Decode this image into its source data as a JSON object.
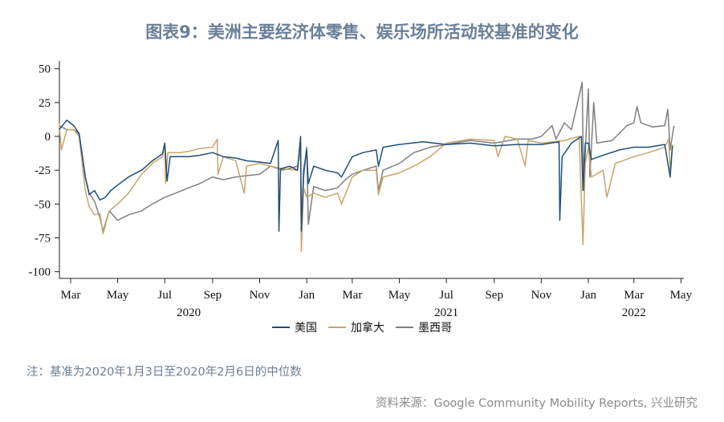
{
  "title": "图表9：美洲主要经济体零售、娱乐场所活动较基准的变化",
  "note": "注：基准为2020年1月3日至2020年2月6日的中位数",
  "source": "资料来源：Google Community Mobility Reports, 兴业研究",
  "chart_data": {
    "type": "line",
    "title": "图表9：美洲主要经济体零售、娱乐场所活动较基准的变化",
    "xlabel": "",
    "ylabel": "",
    "ylim": [
      -100,
      50
    ],
    "yticks": [
      "50",
      "25",
      "0",
      "-25",
      "-50",
      "-75",
      "-100"
    ],
    "xlim": [
      "2020-02-15",
      "2022-04-25"
    ],
    "xticks": [
      {
        "date": "2020-03-01",
        "label": "Mar"
      },
      {
        "date": "2020-05-01",
        "label": "May"
      },
      {
        "date": "2020-07-01",
        "label": "Jul"
      },
      {
        "date": "2020-09-01",
        "label": "Sep"
      },
      {
        "date": "2020-11-01",
        "label": "Nov"
      },
      {
        "date": "2021-01-01",
        "label": "Jan"
      },
      {
        "date": "2021-03-01",
        "label": "Mar"
      },
      {
        "date": "2021-05-01",
        "label": "May"
      },
      {
        "date": "2021-07-01",
        "label": "Jul"
      },
      {
        "date": "2021-09-01",
        "label": "Sep"
      },
      {
        "date": "2021-11-01",
        "label": "Nov"
      },
      {
        "date": "2022-01-01",
        "label": "Jan"
      },
      {
        "date": "2022-03-01",
        "label": "Mar"
      },
      {
        "date": "2022-05-01",
        "label": "May"
      }
    ],
    "year_labels": [
      {
        "date": "2020-08-01",
        "label": "2020"
      },
      {
        "date": "2021-07-01",
        "label": "2021"
      },
      {
        "date": "2022-03-01",
        "label": "2022"
      }
    ],
    "grid": false,
    "legend": "bottom",
    "series": [
      {
        "name": "美国",
        "color": "#1f4e79",
        "points": [
          [
            "2020-02-15",
            5
          ],
          [
            "2020-02-25",
            12
          ],
          [
            "2020-03-05",
            8
          ],
          [
            "2020-03-12",
            2
          ],
          [
            "2020-03-20",
            -30
          ],
          [
            "2020-03-25",
            -43
          ],
          [
            "2020-04-01",
            -40
          ],
          [
            "2020-04-08",
            -47
          ],
          [
            "2020-04-15",
            -45
          ],
          [
            "2020-04-22",
            -40
          ],
          [
            "2020-05-01",
            -36
          ],
          [
            "2020-05-15",
            -30
          ],
          [
            "2020-06-01",
            -25
          ],
          [
            "2020-06-15",
            -18
          ],
          [
            "2020-06-28",
            -13
          ],
          [
            "2020-07-01",
            -5
          ],
          [
            "2020-07-04",
            -33
          ],
          [
            "2020-07-08",
            -15
          ],
          [
            "2020-07-20",
            -15
          ],
          [
            "2020-08-01",
            -15
          ],
          [
            "2020-08-15",
            -14
          ],
          [
            "2020-09-01",
            -12
          ],
          [
            "2020-09-15",
            -15
          ],
          [
            "2020-10-01",
            -16
          ],
          [
            "2020-10-15",
            -18
          ],
          [
            "2020-11-01",
            -19
          ],
          [
            "2020-11-15",
            -20
          ],
          [
            "2020-11-25",
            -3
          ],
          [
            "2020-11-26",
            -70
          ],
          [
            "2020-11-28",
            -24
          ],
          [
            "2020-12-10",
            -22
          ],
          [
            "2020-12-20",
            -25
          ],
          [
            "2020-12-24",
            0
          ],
          [
            "2020-12-25",
            -70
          ],
          [
            "2020-12-28",
            -25
          ],
          [
            "2021-01-01",
            -10
          ],
          [
            "2021-01-03",
            -35
          ],
          [
            "2021-01-10",
            -22
          ],
          [
            "2021-01-25",
            -25
          ],
          [
            "2021-02-10",
            -27
          ],
          [
            "2021-02-15",
            -30
          ],
          [
            "2021-03-01",
            -15
          ],
          [
            "2021-03-15",
            -12
          ],
          [
            "2021-04-01",
            -10
          ],
          [
            "2021-04-04",
            -22
          ],
          [
            "2021-04-10",
            -8
          ],
          [
            "2021-05-01",
            -6
          ],
          [
            "2021-06-01",
            -4
          ],
          [
            "2021-07-01",
            -6
          ],
          [
            "2021-08-01",
            -5
          ],
          [
            "2021-09-01",
            -7
          ],
          [
            "2021-10-01",
            -6
          ],
          [
            "2021-11-01",
            -6
          ],
          [
            "2021-11-24",
            -4
          ],
          [
            "2021-11-25",
            -62
          ],
          [
            "2021-11-28",
            -15
          ],
          [
            "2021-12-10",
            -5
          ],
          [
            "2021-12-23",
            0
          ],
          [
            "2021-12-25",
            -40
          ],
          [
            "2021-12-28",
            -5
          ],
          [
            "2022-01-01",
            -5
          ],
          [
            "2022-01-05",
            -17
          ],
          [
            "2022-01-20",
            -14
          ],
          [
            "2022-02-10",
            -10
          ],
          [
            "2022-03-01",
            -8
          ],
          [
            "2022-03-20",
            -8
          ],
          [
            "2022-04-10",
            -6
          ],
          [
            "2022-04-17",
            -30
          ],
          [
            "2022-04-20",
            -7
          ]
        ]
      },
      {
        "name": "加拿大",
        "color": "#c9a46b",
        "points": [
          [
            "2020-02-15",
            10
          ],
          [
            "2020-02-18",
            -10
          ],
          [
            "2020-02-25",
            5
          ],
          [
            "2020-03-05",
            5
          ],
          [
            "2020-03-12",
            0
          ],
          [
            "2020-03-20",
            -40
          ],
          [
            "2020-03-25",
            -52
          ],
          [
            "2020-04-01",
            -58
          ],
          [
            "2020-04-08",
            -57
          ],
          [
            "2020-04-12",
            -72
          ],
          [
            "2020-04-20",
            -55
          ],
          [
            "2020-05-01",
            -50
          ],
          [
            "2020-05-15",
            -42
          ],
          [
            "2020-06-01",
            -28
          ],
          [
            "2020-06-15",
            -20
          ],
          [
            "2020-06-28",
            -15
          ],
          [
            "2020-07-01",
            -5
          ],
          [
            "2020-07-02",
            -35
          ],
          [
            "2020-07-05",
            -12
          ],
          [
            "2020-07-20",
            -12
          ],
          [
            "2020-08-01",
            -11
          ],
          [
            "2020-08-15",
            -9
          ],
          [
            "2020-09-01",
            -8
          ],
          [
            "2020-09-07",
            -2
          ],
          [
            "2020-09-08",
            -28
          ],
          [
            "2020-09-15",
            -15
          ],
          [
            "2020-10-01",
            -18
          ],
          [
            "2020-10-12",
            -42
          ],
          [
            "2020-10-15",
            -22
          ],
          [
            "2020-11-01",
            -20
          ],
          [
            "2020-11-15",
            -22
          ],
          [
            "2020-12-01",
            -24
          ],
          [
            "2020-12-20",
            -25
          ],
          [
            "2020-12-24",
            -5
          ],
          [
            "2020-12-25",
            -85
          ],
          [
            "2020-12-28",
            -38
          ],
          [
            "2021-01-01",
            -45
          ],
          [
            "2021-01-10",
            -42
          ],
          [
            "2021-01-25",
            -45
          ],
          [
            "2021-02-10",
            -42
          ],
          [
            "2021-02-15",
            -50
          ],
          [
            "2021-03-01",
            -30
          ],
          [
            "2021-03-15",
            -25
          ],
          [
            "2021-04-01",
            -25
          ],
          [
            "2021-04-04",
            -43
          ],
          [
            "2021-04-10",
            -30
          ],
          [
            "2021-05-01",
            -27
          ],
          [
            "2021-05-20",
            -22
          ],
          [
            "2021-06-10",
            -15
          ],
          [
            "2021-07-01",
            -5
          ],
          [
            "2021-08-01",
            -2
          ],
          [
            "2021-09-01",
            -3
          ],
          [
            "2021-09-06",
            -15
          ],
          [
            "2021-09-15",
            0
          ],
          [
            "2021-10-01",
            -2
          ],
          [
            "2021-10-11",
            -22
          ],
          [
            "2021-10-15",
            -3
          ],
          [
            "2021-11-01",
            -5
          ],
          [
            "2021-12-01",
            -3
          ],
          [
            "2021-12-20",
            0
          ],
          [
            "2021-12-25",
            -80
          ],
          [
            "2021-12-28",
            -20
          ],
          [
            "2022-01-01",
            -8
          ],
          [
            "2022-01-05",
            -30
          ],
          [
            "2022-01-20",
            -25
          ],
          [
            "2022-01-25",
            -45
          ],
          [
            "2022-02-05",
            -20
          ],
          [
            "2022-03-01",
            -15
          ],
          [
            "2022-03-20",
            -12
          ],
          [
            "2022-04-10",
            -8
          ],
          [
            "2022-04-15",
            -2
          ],
          [
            "2022-04-17",
            -25
          ],
          [
            "2022-04-20",
            -6
          ]
        ]
      },
      {
        "name": "墨西哥",
        "color": "#7f7f7f",
        "points": [
          [
            "2020-02-15",
            8
          ],
          [
            "2020-02-25",
            5
          ],
          [
            "2020-03-05",
            5
          ],
          [
            "2020-03-12",
            2
          ],
          [
            "2020-03-20",
            -30
          ],
          [
            "2020-03-25",
            -42
          ],
          [
            "2020-04-01",
            -48
          ],
          [
            "2020-04-08",
            -60
          ],
          [
            "2020-04-12",
            -70
          ],
          [
            "2020-04-20",
            -55
          ],
          [
            "2020-05-01",
            -62
          ],
          [
            "2020-05-15",
            -58
          ],
          [
            "2020-06-01",
            -55
          ],
          [
            "2020-06-15",
            -50
          ],
          [
            "2020-07-01",
            -45
          ],
          [
            "2020-07-15",
            -42
          ],
          [
            "2020-08-01",
            -38
          ],
          [
            "2020-08-15",
            -35
          ],
          [
            "2020-09-01",
            -30
          ],
          [
            "2020-09-15",
            -32
          ],
          [
            "2020-10-01",
            -30
          ],
          [
            "2020-10-15",
            -29
          ],
          [
            "2020-11-01",
            -28
          ],
          [
            "2020-11-15",
            -22
          ],
          [
            "2020-12-01",
            -25
          ],
          [
            "2020-12-20",
            -22
          ],
          [
            "2020-12-24",
            -10
          ],
          [
            "2020-12-25",
            -75
          ],
          [
            "2020-12-28",
            -30
          ],
          [
            "2021-01-01",
            -8
          ],
          [
            "2021-01-03",
            -65
          ],
          [
            "2021-01-10",
            -37
          ],
          [
            "2021-01-25",
            -40
          ],
          [
            "2021-02-10",
            -38
          ],
          [
            "2021-02-20",
            -32
          ],
          [
            "2021-03-01",
            -28
          ],
          [
            "2021-03-15",
            -25
          ],
          [
            "2021-04-01",
            -22
          ],
          [
            "2021-04-04",
            -40
          ],
          [
            "2021-04-10",
            -25
          ],
          [
            "2021-05-01",
            -20
          ],
          [
            "2021-05-20",
            -12
          ],
          [
            "2021-06-10",
            -8
          ],
          [
            "2021-07-01",
            -6
          ],
          [
            "2021-08-01",
            -3
          ],
          [
            "2021-09-01",
            -5
          ],
          [
            "2021-10-01",
            -2
          ],
          [
            "2021-10-20",
            -2
          ],
          [
            "2021-11-01",
            0
          ],
          [
            "2021-11-15",
            8
          ],
          [
            "2021-11-20",
            -2
          ],
          [
            "2021-12-01",
            10
          ],
          [
            "2021-12-10",
            5
          ],
          [
            "2021-12-20",
            30
          ],
          [
            "2021-12-24",
            40
          ],
          [
            "2021-12-26",
            -40
          ],
          [
            "2021-12-28",
            -10
          ],
          [
            "2022-01-01",
            35
          ],
          [
            "2022-01-03",
            -30
          ],
          [
            "2022-01-08",
            25
          ],
          [
            "2022-01-12",
            -5
          ],
          [
            "2022-02-01",
            -3
          ],
          [
            "2022-02-20",
            8
          ],
          [
            "2022-03-01",
            10
          ],
          [
            "2022-03-05",
            22
          ],
          [
            "2022-03-10",
            10
          ],
          [
            "2022-03-25",
            7
          ],
          [
            "2022-04-10",
            8
          ],
          [
            "2022-04-14",
            20
          ],
          [
            "2022-04-17",
            -10
          ],
          [
            "2022-04-22",
            8
          ]
        ]
      }
    ]
  }
}
